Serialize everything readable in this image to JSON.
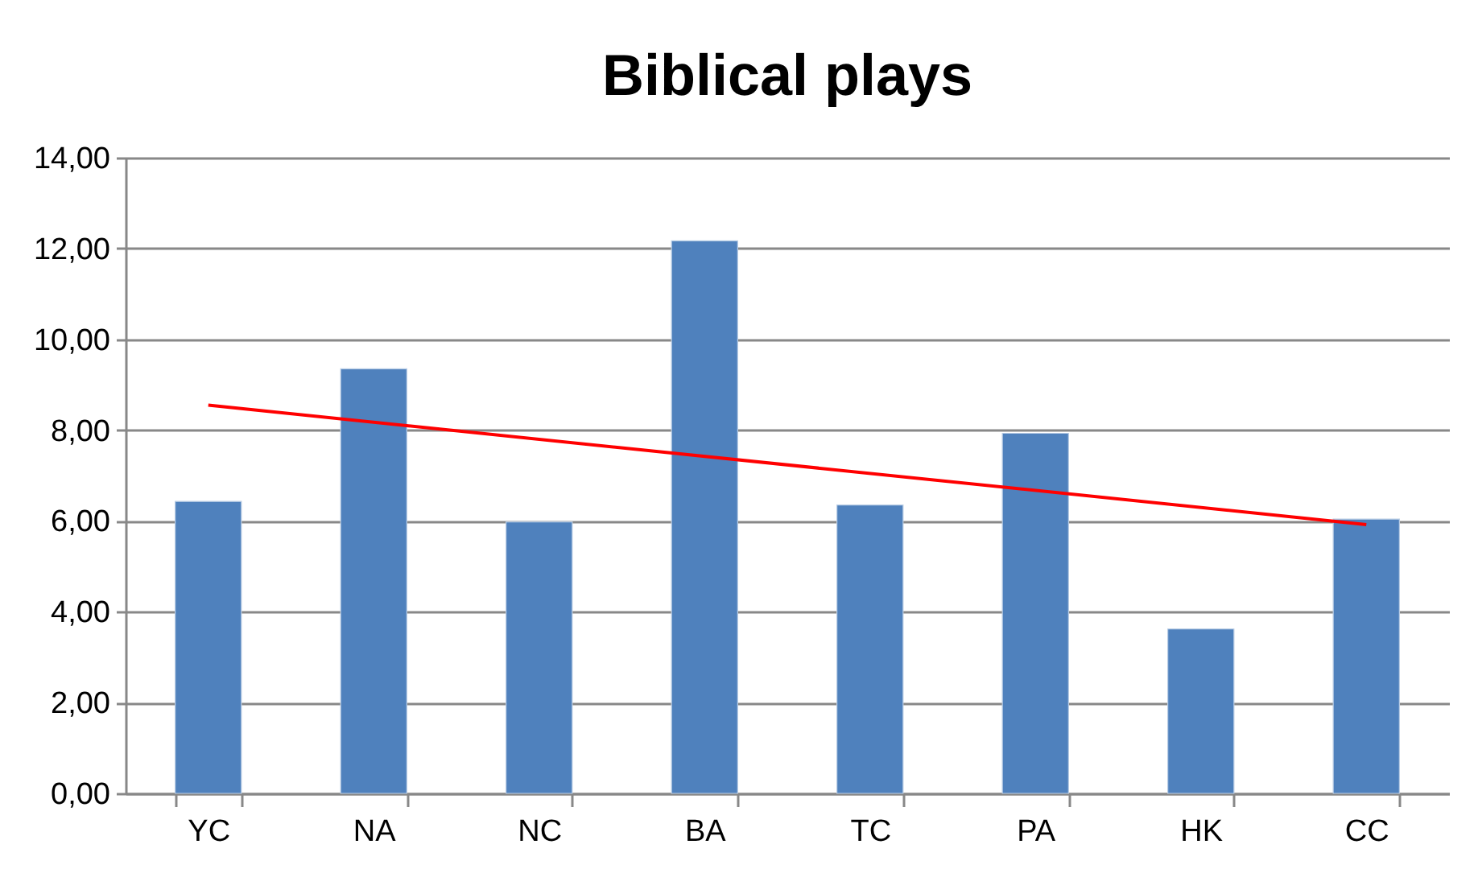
{
  "chart_data": {
    "type": "bar",
    "title": "Biblical plays",
    "categories": [
      "YC",
      "NA",
      "NC",
      "BA",
      "TC",
      "PA",
      "HK",
      "CC"
    ],
    "series": [
      {
        "color": "#4f81bd",
        "values": [
          6.43,
          9.35,
          5.98,
          12.17,
          6.35,
          7.93,
          3.62,
          6.04
        ]
      },
      {
        "type": "line",
        "color": "#ff0000",
        "x": [
          "YC",
          "CC"
        ],
        "values": [
          8.55,
          5.92
        ]
      }
    ],
    "ylim": [
      0,
      14
    ],
    "yticks": [
      {
        "value": 0,
        "label": "0,00"
      },
      {
        "value": 2,
        "label": "2,00"
      },
      {
        "value": 4,
        "label": "4,00"
      },
      {
        "value": 6,
        "label": "6,00"
      },
      {
        "value": 8,
        "label": "8,00"
      },
      {
        "value": 10,
        "label": "10,00"
      },
      {
        "value": 12,
        "label": "12,00"
      },
      {
        "value": 14,
        "label": "14,00"
      }
    ],
    "grid": "y"
  }
}
